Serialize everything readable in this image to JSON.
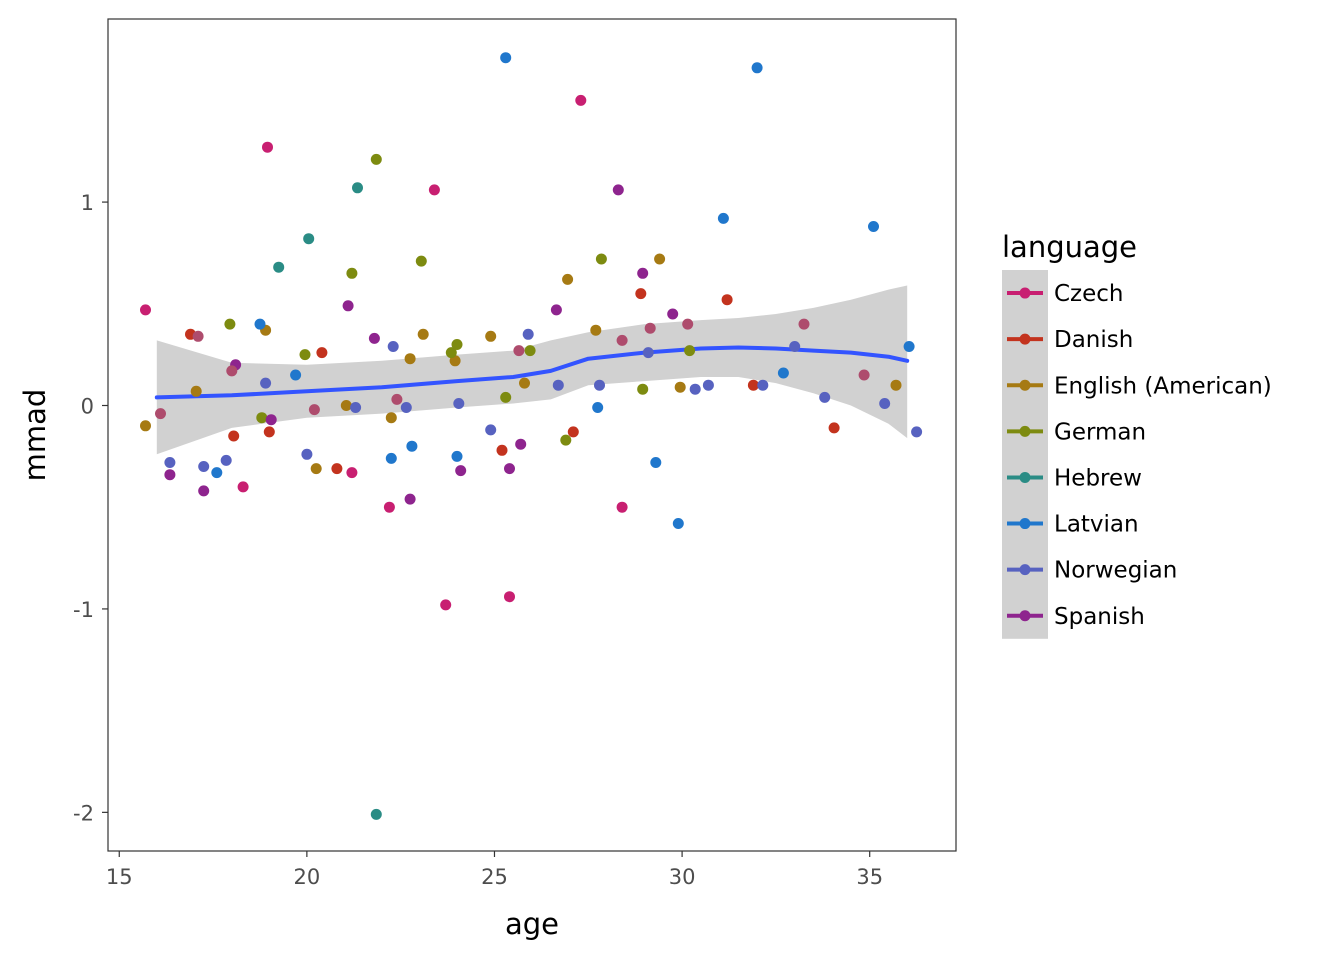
{
  "chart_data": {
    "type": "scatter",
    "title": "",
    "xlabel": "age",
    "ylabel": "mmad",
    "xlim": [
      14.7,
      37.3
    ],
    "ylim": [
      -2.19,
      1.9
    ],
    "x_ticks": [
      15,
      20,
      25,
      30,
      35
    ],
    "x_tick_labels": [
      "15",
      "20",
      "25",
      "30",
      "35"
    ],
    "y_ticks": [
      -2,
      -1,
      0,
      1
    ],
    "y_tick_labels": [
      "-2",
      "-1",
      "0",
      "1"
    ],
    "grid": false,
    "legend": {
      "title": "language",
      "position": "right"
    },
    "series": [
      {
        "name": "Czech",
        "color": "#C81F71",
        "points": [
          [
            15.7,
            0.47
          ],
          [
            18.95,
            1.27
          ],
          [
            18.3,
            -0.4
          ],
          [
            21.2,
            -0.33
          ],
          [
            22.2,
            -0.5
          ],
          [
            23.4,
            1.06
          ],
          [
            23.7,
            -0.98
          ],
          [
            25.4,
            -0.94
          ],
          [
            27.3,
            1.5
          ],
          [
            28.4,
            -0.5
          ]
        ]
      },
      {
        "name": "Danish",
        "color": "#C3331E",
        "points": [
          [
            16.9,
            0.35
          ],
          [
            18.05,
            -0.15
          ],
          [
            19.0,
            -0.13
          ],
          [
            20.4,
            0.26
          ],
          [
            20.8,
            -0.31
          ],
          [
            25.2,
            -0.22
          ],
          [
            27.1,
            -0.13
          ],
          [
            28.9,
            0.55
          ],
          [
            31.2,
            0.52
          ],
          [
            31.9,
            0.1
          ],
          [
            34.05,
            -0.11
          ]
        ]
      },
      {
        "name": "English (American)",
        "color": "#A67A13",
        "points": [
          [
            15.7,
            -0.1
          ],
          [
            17.05,
            0.07
          ],
          [
            18.9,
            0.37
          ],
          [
            20.25,
            -0.31
          ],
          [
            21.05,
            0.0
          ],
          [
            22.25,
            -0.06
          ],
          [
            22.75,
            0.23
          ],
          [
            23.1,
            0.35
          ],
          [
            23.95,
            0.22
          ],
          [
            24.9,
            0.34
          ],
          [
            25.8,
            0.11
          ],
          [
            26.95,
            0.62
          ],
          [
            27.7,
            0.37
          ],
          [
            29.4,
            0.72
          ],
          [
            29.95,
            0.09
          ],
          [
            35.7,
            0.1
          ]
        ]
      },
      {
        "name": "German",
        "color": "#7D8B10",
        "points": [
          [
            17.95,
            0.4
          ],
          [
            18.8,
            -0.06
          ],
          [
            19.95,
            0.25
          ],
          [
            21.2,
            0.65
          ],
          [
            21.85,
            1.21
          ],
          [
            23.05,
            0.71
          ],
          [
            23.85,
            0.26
          ],
          [
            24.0,
            0.3
          ],
          [
            25.3,
            0.04
          ],
          [
            25.95,
            0.27
          ],
          [
            26.9,
            -0.17
          ],
          [
            27.85,
            0.72
          ],
          [
            28.95,
            0.08
          ],
          [
            30.2,
            0.27
          ]
        ]
      },
      {
        "name": "Hebrew",
        "color": "#2A8C85",
        "points": [
          [
            19.25,
            0.68
          ],
          [
            20.05,
            0.82
          ],
          [
            21.35,
            1.07
          ],
          [
            21.85,
            -2.01
          ]
        ]
      },
      {
        "name": "Latvian",
        "color": "#2077CC",
        "points": [
          [
            17.6,
            -0.33
          ],
          [
            18.75,
            0.4
          ],
          [
            19.7,
            0.15
          ],
          [
            22.25,
            -0.26
          ],
          [
            22.8,
            -0.2
          ],
          [
            24.0,
            -0.25
          ],
          [
            25.3,
            1.71
          ],
          [
            27.75,
            -0.01
          ],
          [
            29.3,
            -0.28
          ],
          [
            29.9,
            -0.58
          ],
          [
            31.1,
            0.92
          ],
          [
            32.0,
            1.66
          ],
          [
            32.7,
            0.16
          ],
          [
            35.1,
            0.88
          ],
          [
            36.05,
            0.29
          ]
        ]
      },
      {
        "name": "Norwegian",
        "color": "#5762C0",
        "points": [
          [
            16.35,
            -0.28
          ],
          [
            17.25,
            -0.3
          ],
          [
            17.85,
            -0.27
          ],
          [
            18.9,
            0.11
          ],
          [
            20.0,
            -0.24
          ],
          [
            21.3,
            -0.01
          ],
          [
            22.3,
            0.29
          ],
          [
            22.65,
            -0.01
          ],
          [
            24.05,
            0.01
          ],
          [
            24.9,
            -0.12
          ],
          [
            25.9,
            0.35
          ],
          [
            26.7,
            0.1
          ],
          [
            27.8,
            0.1
          ],
          [
            29.1,
            0.26
          ],
          [
            30.35,
            0.08
          ],
          [
            30.7,
            0.1
          ],
          [
            32.15,
            0.1
          ],
          [
            33.0,
            0.29
          ],
          [
            33.8,
            0.04
          ],
          [
            35.4,
            0.01
          ],
          [
            36.25,
            -0.13
          ]
        ]
      },
      {
        "name": "Spanish",
        "color": "#8E248E",
        "points": [
          [
            16.35,
            -0.34
          ],
          [
            17.25,
            -0.42
          ],
          [
            18.1,
            0.2
          ],
          [
            19.05,
            -0.07
          ],
          [
            21.1,
            0.49
          ],
          [
            21.8,
            0.33
          ],
          [
            22.75,
            -0.46
          ],
          [
            24.1,
            -0.32
          ],
          [
            25.4,
            -0.31
          ],
          [
            25.7,
            -0.19
          ],
          [
            26.65,
            0.47
          ],
          [
            28.3,
            1.06
          ],
          [
            28.95,
            0.65
          ],
          [
            29.75,
            0.45
          ]
        ]
      },
      {
        "name": "",
        "color": "#AE4C6D",
        "points": [
          [
            16.1,
            -0.04
          ],
          [
            17.1,
            0.34
          ],
          [
            18.0,
            0.17
          ],
          [
            20.2,
            -0.02
          ],
          [
            22.4,
            0.03
          ],
          [
            25.65,
            0.27
          ],
          [
            28.4,
            0.32
          ],
          [
            29.15,
            0.38
          ],
          [
            30.15,
            0.4
          ],
          [
            33.25,
            0.4
          ],
          [
            34.85,
            0.15
          ]
        ]
      }
    ],
    "smooth": {
      "color": "#3354FF",
      "band_color": "#D1D1D1",
      "x": [
        16.0,
        18.0,
        20.0,
        22.0,
        24.0,
        25.5,
        26.5,
        27.5,
        29.0,
        30.5,
        31.5,
        32.5,
        33.5,
        34.5,
        35.5,
        36.0
      ],
      "y": [
        0.04,
        0.05,
        0.07,
        0.09,
        0.12,
        0.14,
        0.17,
        0.23,
        0.26,
        0.28,
        0.285,
        0.28,
        0.27,
        0.26,
        0.24,
        0.22
      ],
      "upper": [
        0.32,
        0.21,
        0.2,
        0.22,
        0.25,
        0.27,
        0.32,
        0.36,
        0.4,
        0.42,
        0.43,
        0.45,
        0.48,
        0.52,
        0.57,
        0.59
      ],
      "lower": [
        -0.24,
        -0.11,
        -0.06,
        -0.04,
        -0.01,
        0.01,
        0.03,
        0.1,
        0.12,
        0.14,
        0.14,
        0.11,
        0.06,
        0.0,
        -0.09,
        -0.16
      ]
    }
  }
}
